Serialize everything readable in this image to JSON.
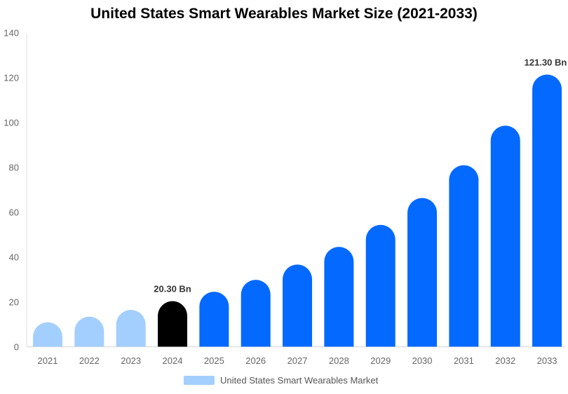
{
  "chart_data": {
    "type": "bar",
    "title": "United States Smart Wearables Market Size (2021-2033)",
    "categories": [
      "2021",
      "2022",
      "2023",
      "2024",
      "2025",
      "2026",
      "2027",
      "2028",
      "2029",
      "2030",
      "2031",
      "2032",
      "2033"
    ],
    "series": [
      {
        "name": "United States Smart Wearables Market",
        "values": [
          10.9,
          13.4,
          16.4,
          20.3,
          24.5,
          29.8,
          36.6,
          44.5,
          54.3,
          66.3,
          80.9,
          98.5,
          121.3
        ]
      }
    ],
    "data_labels": [
      {
        "category": "2024",
        "text": "20.30 Bn"
      },
      {
        "category": "2033",
        "text": "121.30 Bn"
      }
    ],
    "ylim": [
      0,
      140
    ],
    "yticks": [
      0,
      20,
      40,
      60,
      80,
      100,
      120,
      140
    ],
    "xlabel": "",
    "ylabel": "",
    "grid": false,
    "legend_position": "bottom",
    "colors": {
      "historical": "#a3cfff",
      "current": "#000000",
      "forecast": "#0369ff"
    },
    "bar_color_groups": [
      "historical",
      "historical",
      "historical",
      "current",
      "forecast",
      "forecast",
      "forecast",
      "forecast",
      "forecast",
      "forecast",
      "forecast",
      "forecast",
      "forecast"
    ]
  }
}
